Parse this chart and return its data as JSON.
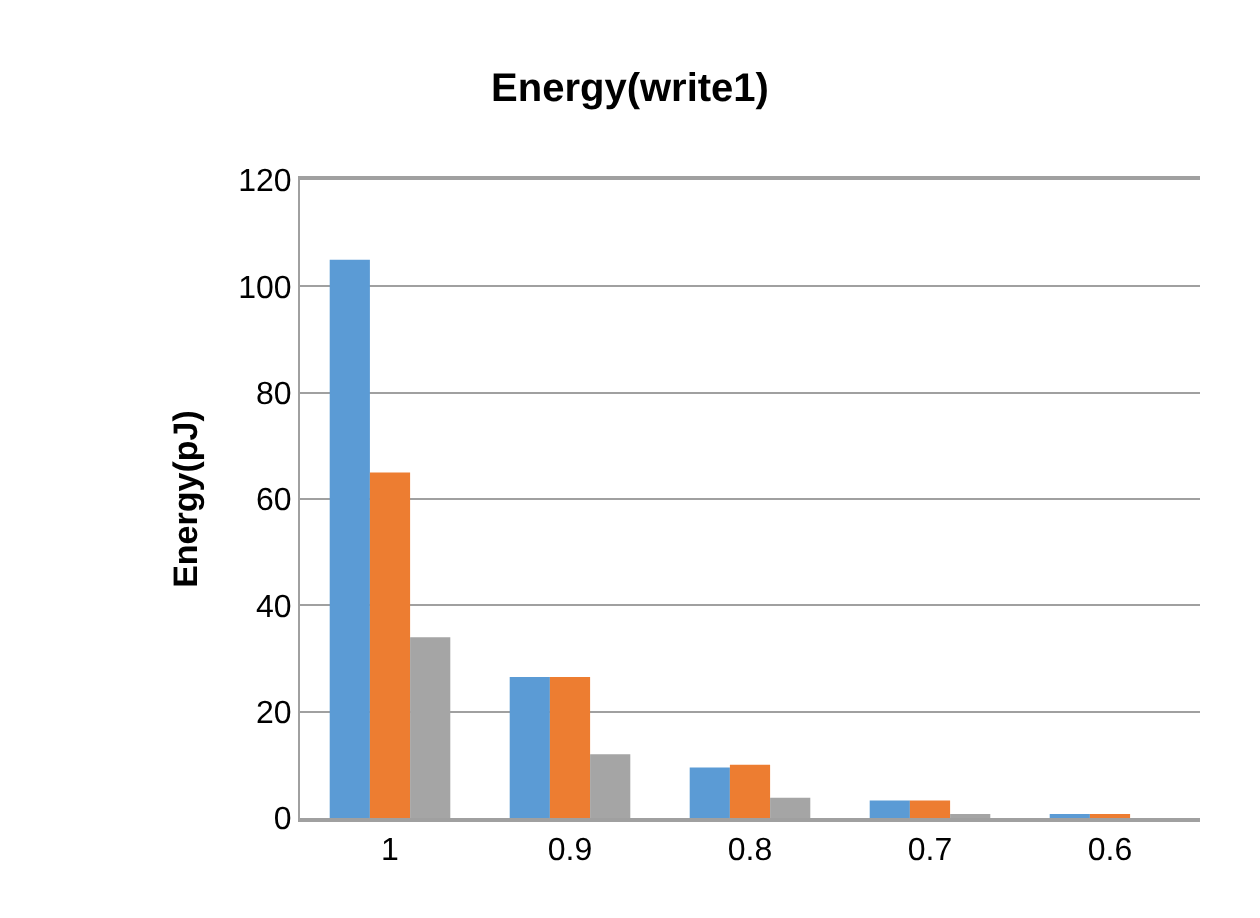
{
  "chart_data": {
    "type": "bar",
    "title": "Energy(write1)",
    "ylabel": "Energy(pJ)",
    "categories": [
      "1",
      "0.9",
      "0.8",
      "0.7",
      "0.6"
    ],
    "series": [
      {
        "color": "#5b9bd5",
        "values": [
          105,
          26.5,
          9.5,
          3.3,
          0.7
        ]
      },
      {
        "color": "#ed7d31",
        "values": [
          65,
          26.5,
          10,
          3.3,
          0.7
        ]
      },
      {
        "color": "#a5a5a5",
        "values": [
          34,
          12,
          3.8,
          0.7,
          null
        ]
      }
    ],
    "ylim": [
      0,
      120
    ],
    "yticks": [
      0,
      20,
      40,
      60,
      80,
      100,
      120
    ],
    "grid": "y"
  }
}
